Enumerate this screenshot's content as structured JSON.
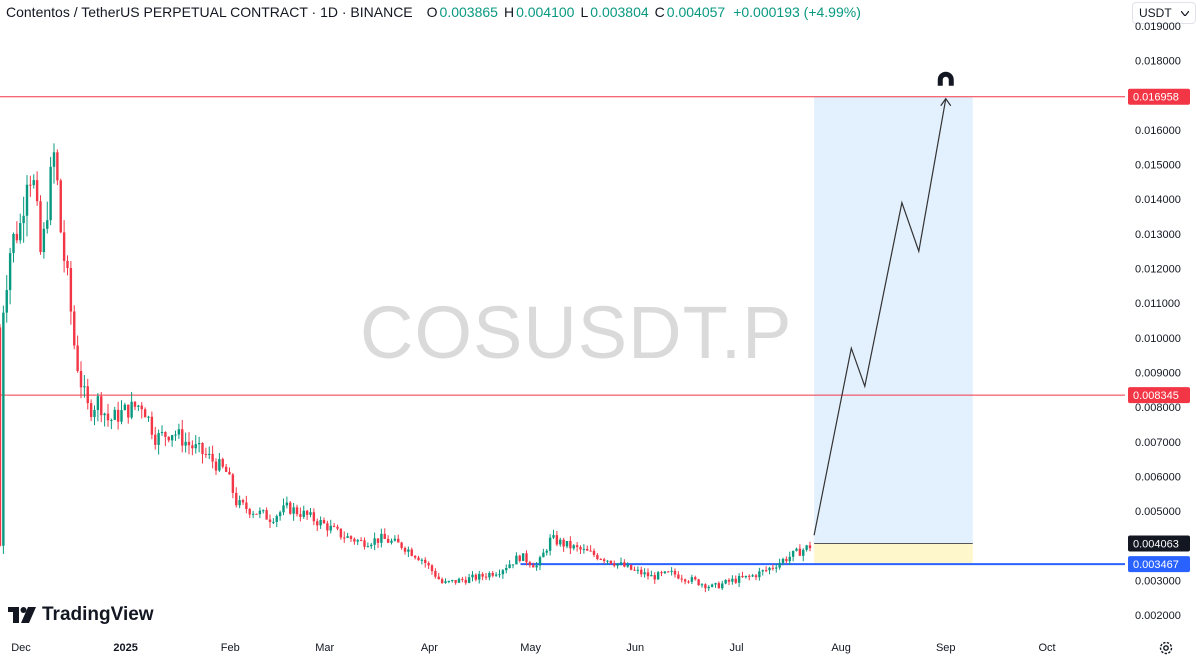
{
  "header": {
    "title": "Contentos / TetherUS PERPETUAL CONTRACT · 1D · BINANCE",
    "o_label": "O",
    "o_value": "0.003865",
    "h_label": "H",
    "h_value": "0.004100",
    "l_label": "L",
    "l_value": "0.003804",
    "c_label": "C",
    "c_value": "0.004057",
    "change": "+0.000193 (+4.99%)"
  },
  "currency_selector": "USDT",
  "watermark": "COSUSDT.P",
  "brand": "TradingView",
  "colors": {
    "up": "#089981",
    "down": "#f23645",
    "resistance": "#f23645",
    "support": "#2962ff",
    "projection": "#e3f0fd",
    "entry_zone": "#fff7cc"
  },
  "chart_data": {
    "type": "candlestick",
    "symbol": "COSUSDT.P",
    "timeframe": "1D",
    "y_ticks": [
      "0.002000",
      "0.003000",
      "0.004000",
      "0.005000",
      "0.006000",
      "0.007000",
      "0.008000",
      "0.009000",
      "0.010000",
      "0.011000",
      "0.012000",
      "0.013000",
      "0.014000",
      "0.015000",
      "0.016000",
      "0.017000",
      "0.018000",
      "0.019000"
    ],
    "x_ticks": [
      {
        "label": "Dec",
        "date": "2024-12-01"
      },
      {
        "label": "2025",
        "date": "2025-01-01"
      },
      {
        "label": "Feb",
        "date": "2025-02-01"
      },
      {
        "label": "Mar",
        "date": "2025-03-01"
      },
      {
        "label": "Apr",
        "date": "2025-04-01"
      },
      {
        "label": "May",
        "date": "2025-05-01"
      },
      {
        "label": "Jun",
        "date": "2025-06-01"
      },
      {
        "label": "Jul",
        "date": "2025-07-01"
      },
      {
        "label": "Aug",
        "date": "2025-08-01"
      },
      {
        "label": "Sep",
        "date": "2025-09-01"
      },
      {
        "label": "Oct",
        "date": "2025-10-01"
      }
    ],
    "price_path": [
      [
        "2024-11-25",
        0.0103
      ],
      [
        "2024-11-28",
        0.0127
      ],
      [
        "2024-12-01",
        0.0133
      ],
      [
        "2024-12-03",
        0.015
      ],
      [
        "2024-12-05",
        0.0143
      ],
      [
        "2024-12-07",
        0.0122
      ],
      [
        "2024-12-09",
        0.014
      ],
      [
        "2024-12-11",
        0.0154
      ],
      [
        "2024-12-13",
        0.0128
      ],
      [
        "2024-12-15",
        0.0115
      ],
      [
        "2024-12-17",
        0.0096
      ],
      [
        "2024-12-19",
        0.0086
      ],
      [
        "2024-12-21",
        0.0079
      ],
      [
        "2024-12-24",
        0.0082
      ],
      [
        "2024-12-27",
        0.0076
      ],
      [
        "2025-01-01",
        0.0079
      ],
      [
        "2025-01-06",
        0.0081
      ],
      [
        "2025-01-10",
        0.0071
      ],
      [
        "2025-01-15",
        0.0073
      ],
      [
        "2025-01-20",
        0.0069
      ],
      [
        "2025-01-25",
        0.0066
      ],
      [
        "2025-01-31",
        0.0061
      ],
      [
        "2025-02-03",
        0.0052
      ],
      [
        "2025-02-08",
        0.005
      ],
      [
        "2025-02-13",
        0.0048
      ],
      [
        "2025-02-18",
        0.0051
      ],
      [
        "2025-02-23",
        0.0049
      ],
      [
        "2025-03-01",
        0.0046
      ],
      [
        "2025-03-06",
        0.0043
      ],
      [
        "2025-03-12",
        0.0041
      ],
      [
        "2025-03-18",
        0.0042
      ],
      [
        "2025-03-24",
        0.004
      ],
      [
        "2025-03-30",
        0.0036
      ],
      [
        "2025-04-05",
        0.0029
      ],
      [
        "2025-04-10",
        0.003
      ],
      [
        "2025-04-16",
        0.0031
      ],
      [
        "2025-04-22",
        0.0033
      ],
      [
        "2025-04-28",
        0.0037
      ],
      [
        "2025-05-03",
        0.0034
      ],
      [
        "2025-05-07",
        0.0042
      ],
      [
        "2025-05-12",
        0.004
      ],
      [
        "2025-05-18",
        0.0038
      ],
      [
        "2025-05-24",
        0.0036
      ],
      [
        "2025-05-31",
        0.0033
      ],
      [
        "2025-06-06",
        0.0031
      ],
      [
        "2025-06-12",
        0.0032
      ],
      [
        "2025-06-18",
        0.003
      ],
      [
        "2025-06-24",
        0.0028
      ],
      [
        "2025-06-30",
        0.003
      ],
      [
        "2025-07-05",
        0.0031
      ],
      [
        "2025-07-10",
        0.0033
      ],
      [
        "2025-07-15",
        0.0036
      ],
      [
        "2025-07-19",
        0.0038
      ],
      [
        "2025-07-23",
        0.004
      ]
    ],
    "horizontal_lines": [
      {
        "price": "0.016958",
        "value": 0.016958,
        "style": "resistance"
      },
      {
        "price": "0.008345",
        "value": 0.008345,
        "style": "resistance"
      }
    ],
    "support_line": {
      "price": "0.003467",
      "value": 0.003467,
      "from": "2025-04-28"
    },
    "entry_level": {
      "price": "0.004063",
      "value": 0.004063
    },
    "projection": {
      "start": "2025-07-24",
      "end": "2025-09-09",
      "upper": 0.016958,
      "entry": 0.004063,
      "lower": 0.003467,
      "path": [
        [
          "2025-07-24",
          0.0043
        ],
        [
          "2025-08-04",
          0.0097
        ],
        [
          "2025-08-08",
          0.0086
        ],
        [
          "2025-08-19",
          0.0139
        ],
        [
          "2025-08-24",
          0.0125
        ],
        [
          "2025-09-01",
          0.0169
        ]
      ]
    },
    "price_tags": [
      {
        "text": "0.016958",
        "value": 0.016958,
        "kind": "resistance"
      },
      {
        "text": "0.008345",
        "value": 0.008345,
        "kind": "resistance"
      },
      {
        "text": "0.004063",
        "value": 0.004063,
        "kind": "entry"
      },
      {
        "text": "0.003467",
        "value": 0.003467,
        "kind": "support"
      }
    ]
  }
}
